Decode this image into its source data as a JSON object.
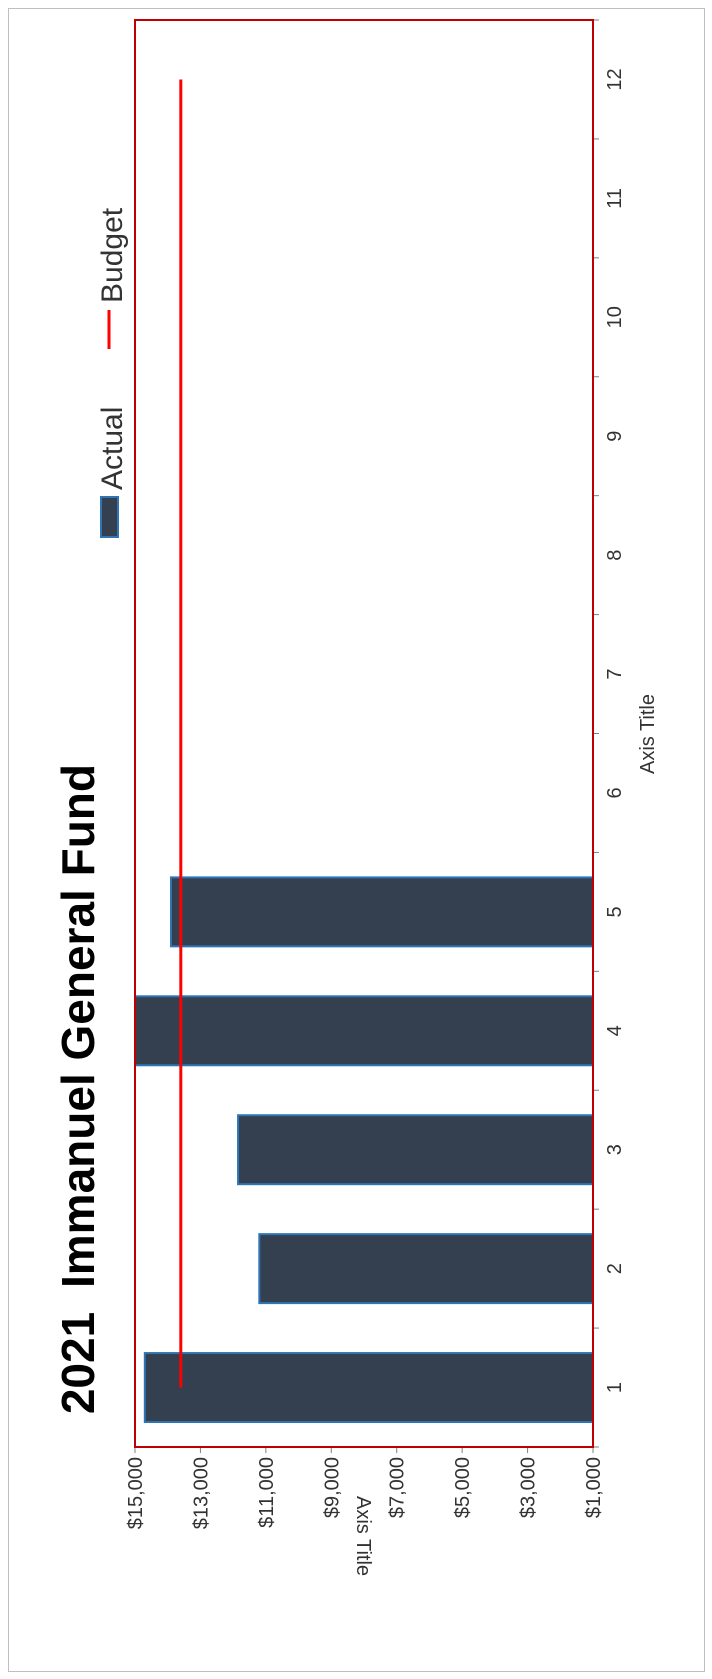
{
  "chart_data": {
    "type": "bar",
    "title_year": "2021",
    "title": "Immanuel General Fund",
    "xlabel": "Axis Title",
    "ylabel": "Axis Title",
    "categories": [
      "1",
      "2",
      "3",
      "4",
      "5",
      "6",
      "7",
      "8",
      "9",
      "10",
      "11",
      "12"
    ],
    "ylim": [
      1000,
      15000
    ],
    "y_ticks": [
      "$1,000",
      "$3,000",
      "$5,000",
      "$7,000",
      "$9,000",
      "$11,000",
      "$13,000",
      "$15,000"
    ],
    "y_tick_values": [
      1000,
      3000,
      5000,
      7000,
      9000,
      11000,
      13000,
      15000
    ],
    "series": [
      {
        "name": "Actual",
        "type": "bar",
        "values": [
          14700,
          11200,
          11850,
          15000,
          13900,
          null,
          null,
          null,
          null,
          null,
          null,
          null
        ],
        "color": "#343f4f",
        "edge_color": "#2e75b6"
      },
      {
        "name": "Budget",
        "type": "line",
        "values": [
          13600,
          13600,
          13600,
          13600,
          13600,
          13600,
          13600,
          13600,
          13600,
          13600,
          13600,
          13600
        ],
        "color": "#ff0000"
      }
    ],
    "plot_border_color": "#c00000",
    "grid": false,
    "legend_position": "top"
  }
}
